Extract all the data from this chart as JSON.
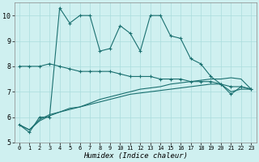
{
  "xlabel": "Humidex (Indice chaleur)",
  "x": [
    0,
    1,
    2,
    3,
    4,
    5,
    6,
    7,
    8,
    9,
    10,
    11,
    12,
    13,
    14,
    15,
    16,
    17,
    18,
    19,
    20,
    21,
    22,
    23
  ],
  "line1": [
    5.7,
    5.4,
    6.0,
    6.0,
    10.3,
    9.7,
    10.0,
    10.0,
    8.6,
    8.7,
    9.6,
    9.3,
    8.6,
    10.0,
    10.0,
    9.2,
    9.1,
    8.3,
    8.1,
    7.6,
    7.3,
    6.9,
    7.2,
    7.1
  ],
  "line2": [
    8.0,
    8.0,
    8.0,
    8.1,
    8.0,
    7.9,
    7.8,
    7.8,
    7.8,
    7.8,
    7.7,
    7.6,
    7.6,
    7.6,
    7.5,
    7.5,
    7.5,
    7.4,
    7.4,
    7.4,
    7.3,
    7.2,
    7.2,
    7.1
  ],
  "line3": [
    5.7,
    5.5,
    5.9,
    6.1,
    6.2,
    6.35,
    6.4,
    6.55,
    6.7,
    6.8,
    6.9,
    7.0,
    7.1,
    7.15,
    7.2,
    7.3,
    7.35,
    7.4,
    7.45,
    7.5,
    7.5,
    7.55,
    7.5,
    7.1
  ],
  "line4": [
    5.7,
    5.5,
    5.85,
    6.05,
    6.2,
    6.3,
    6.4,
    6.5,
    6.6,
    6.7,
    6.8,
    6.9,
    6.95,
    7.0,
    7.05,
    7.1,
    7.15,
    7.2,
    7.25,
    7.3,
    7.3,
    7.0,
    7.1,
    7.1
  ],
  "bg_color": "#cff0f0",
  "grid_color": "#aadddd",
  "line_color": "#1a7070",
  "ylim": [
    5,
    10.5
  ],
  "xlim": [
    -0.5,
    23.5
  ],
  "yticks": [
    5,
    6,
    7,
    8,
    9,
    10
  ],
  "xticks": [
    0,
    1,
    2,
    3,
    4,
    5,
    6,
    7,
    8,
    9,
    10,
    11,
    12,
    13,
    14,
    15,
    16,
    17,
    18,
    19,
    20,
    21,
    22,
    23
  ]
}
